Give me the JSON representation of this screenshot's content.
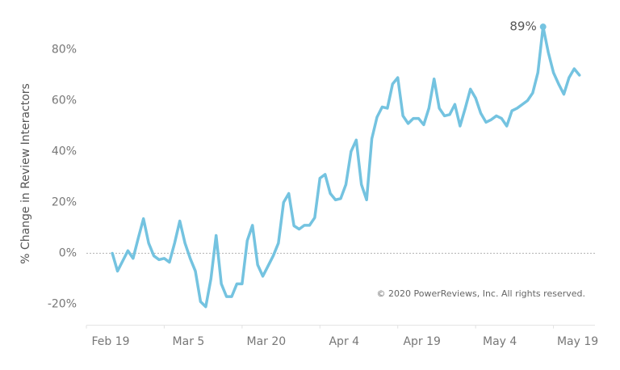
{
  "chart_data": {
    "type": "line",
    "ylabel": "% Change in Review Interactors",
    "color": "#74c3e0",
    "x": [
      5,
      6,
      7,
      8,
      9,
      10,
      11,
      12,
      13,
      14,
      15,
      16,
      17,
      18,
      19,
      20,
      21,
      22,
      23,
      24,
      25,
      26,
      27,
      28,
      29,
      30,
      31,
      32,
      33,
      34,
      35,
      36,
      37,
      38,
      39,
      40,
      41,
      42,
      43,
      44,
      45,
      46,
      47,
      48,
      49,
      50,
      51,
      52,
      53,
      54,
      55,
      56,
      57,
      58,
      59,
      60,
      61,
      62,
      63,
      64,
      65,
      66,
      67,
      68,
      69,
      70,
      71,
      72,
      73,
      74,
      75,
      76,
      77,
      78,
      79,
      80,
      81,
      82,
      83,
      84,
      85,
      86,
      87,
      88,
      89,
      90,
      91,
      92,
      93,
      94,
      95
    ],
    "values": [
      0,
      -7,
      -3,
      1,
      -2,
      6,
      13.6,
      4,
      -1,
      -2.5,
      -2,
      -3.5,
      4,
      12.7,
      4,
      -2,
      -7,
      -19,
      -21,
      -10,
      7,
      -12,
      -17,
      -17,
      -12,
      -12,
      5,
      11,
      -4.5,
      -9,
      -5,
      -1,
      4,
      20,
      23.5,
      10.8,
      9.5,
      11,
      11,
      14,
      29.5,
      31,
      23.5,
      21,
      21.5,
      27,
      40,
      44.5,
      27,
      21,
      45,
      53.5,
      57.5,
      57,
      66.5,
      69,
      54,
      51,
      53,
      53,
      50.5,
      57,
      68.5,
      57,
      54,
      54.5,
      58.5,
      50,
      57,
      64.5,
      61,
      55,
      51.5,
      52.5,
      54,
      53,
      50,
      56,
      57,
      58.5,
      60,
      63,
      71,
      89,
      79,
      71,
      66.5,
      62.5,
      69,
      72.5,
      70
    ],
    "xlim": [
      0,
      98
    ],
    "xticks": [
      {
        "value": 0,
        "label": "Feb 19"
      },
      {
        "value": 15,
        "label": "Mar 5"
      },
      {
        "value": 30,
        "label": "Mar 20"
      },
      {
        "value": 45,
        "label": "Apr 4"
      },
      {
        "value": 60,
        "label": "Apr 19"
      },
      {
        "value": 75,
        "label": "May 4"
      },
      {
        "value": 90,
        "label": "May 19"
      }
    ],
    "ylim": [
      -27,
      90
    ],
    "yticks": [
      {
        "value": -20,
        "label": "-20%"
      },
      {
        "value": 0,
        "label": "0%"
      },
      {
        "value": 20,
        "label": "20%"
      },
      {
        "value": 40,
        "label": "40%"
      },
      {
        "value": 60,
        "label": "60%"
      },
      {
        "value": 80,
        "label": "80%"
      }
    ],
    "zero_line": true,
    "annotation": {
      "label": "89%",
      "x": 88,
      "y": 89
    },
    "note": "© 2020 PowerReviews, Inc. All rights reserved."
  }
}
